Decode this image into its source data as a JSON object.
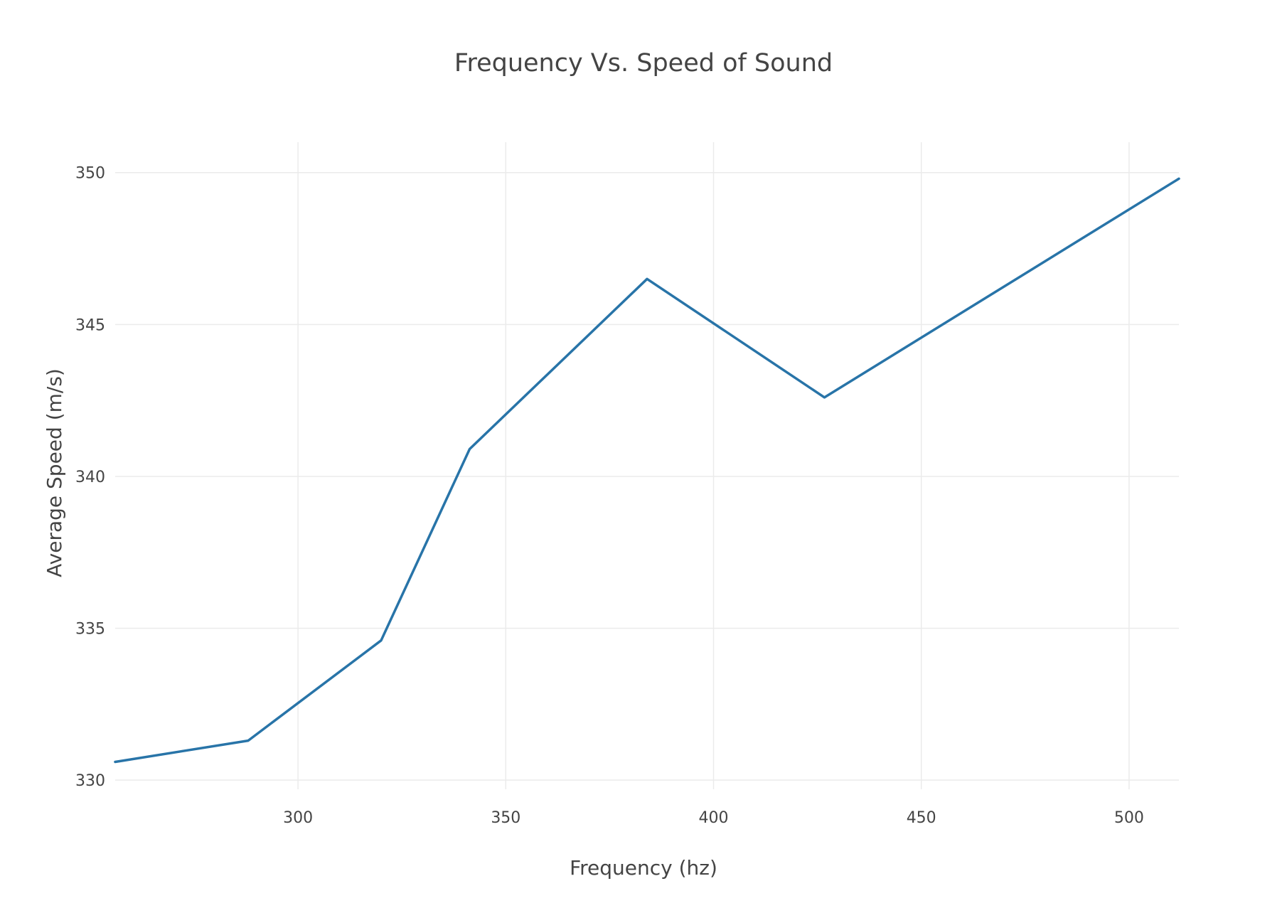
{
  "chart_data": {
    "type": "line",
    "title": "Frequency Vs. Speed of Sound",
    "xlabel": "Frequency (hz)",
    "ylabel": "Average Speed (m/s)",
    "xlim": [
      256,
      512
    ],
    "ylim": [
      329.7,
      351
    ],
    "x_ticks": [
      300,
      350,
      400,
      450,
      500
    ],
    "y_ticks": [
      330,
      335,
      340,
      345,
      350
    ],
    "grid": true,
    "series": [
      {
        "color": "#2874a8",
        "x": [
          256,
          288,
          320,
          341.3,
          384,
          426.7,
          512
        ],
        "y": [
          330.6,
          331.3,
          334.6,
          340.9,
          346.5,
          342.6,
          349.8
        ]
      }
    ]
  }
}
